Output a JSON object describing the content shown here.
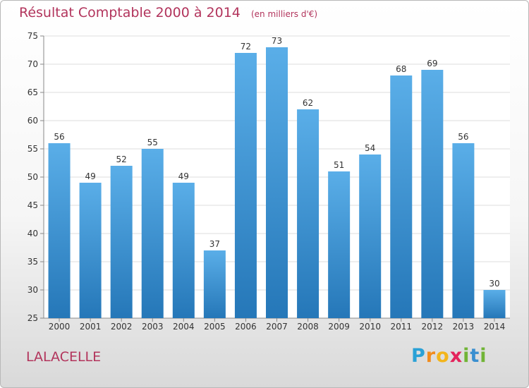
{
  "title": "Résultat Comptable 2000 à 2014",
  "subtitle": "(en milliers d'€)",
  "commune": "LALACELLE",
  "logo": {
    "letters": [
      "P",
      "r",
      "o",
      "x",
      "i",
      "t",
      "i"
    ],
    "colors": [
      "#2aa1d6",
      "#f18c1e",
      "#f3b51b",
      "#e4235b",
      "#71b436",
      "#3a8fd0",
      "#71b436"
    ]
  },
  "colors": {
    "title": "#b2345c",
    "bar_top": "#5aaee8",
    "bar_bottom": "#2577b8"
  },
  "chart_data": {
    "type": "bar",
    "categories": [
      "2000",
      "2001",
      "2002",
      "2003",
      "2004",
      "2005",
      "2006",
      "2007",
      "2008",
      "2009",
      "2010",
      "2011",
      "2012",
      "2013",
      "2014"
    ],
    "values": [
      56,
      49,
      52,
      55,
      49,
      37,
      72,
      73,
      62,
      51,
      54,
      68,
      69,
      56,
      30
    ],
    "ylim": [
      25,
      75
    ],
    "yticks": [
      25,
      30,
      35,
      40,
      45,
      50,
      55,
      60,
      65,
      70,
      75
    ],
    "grid": true
  }
}
